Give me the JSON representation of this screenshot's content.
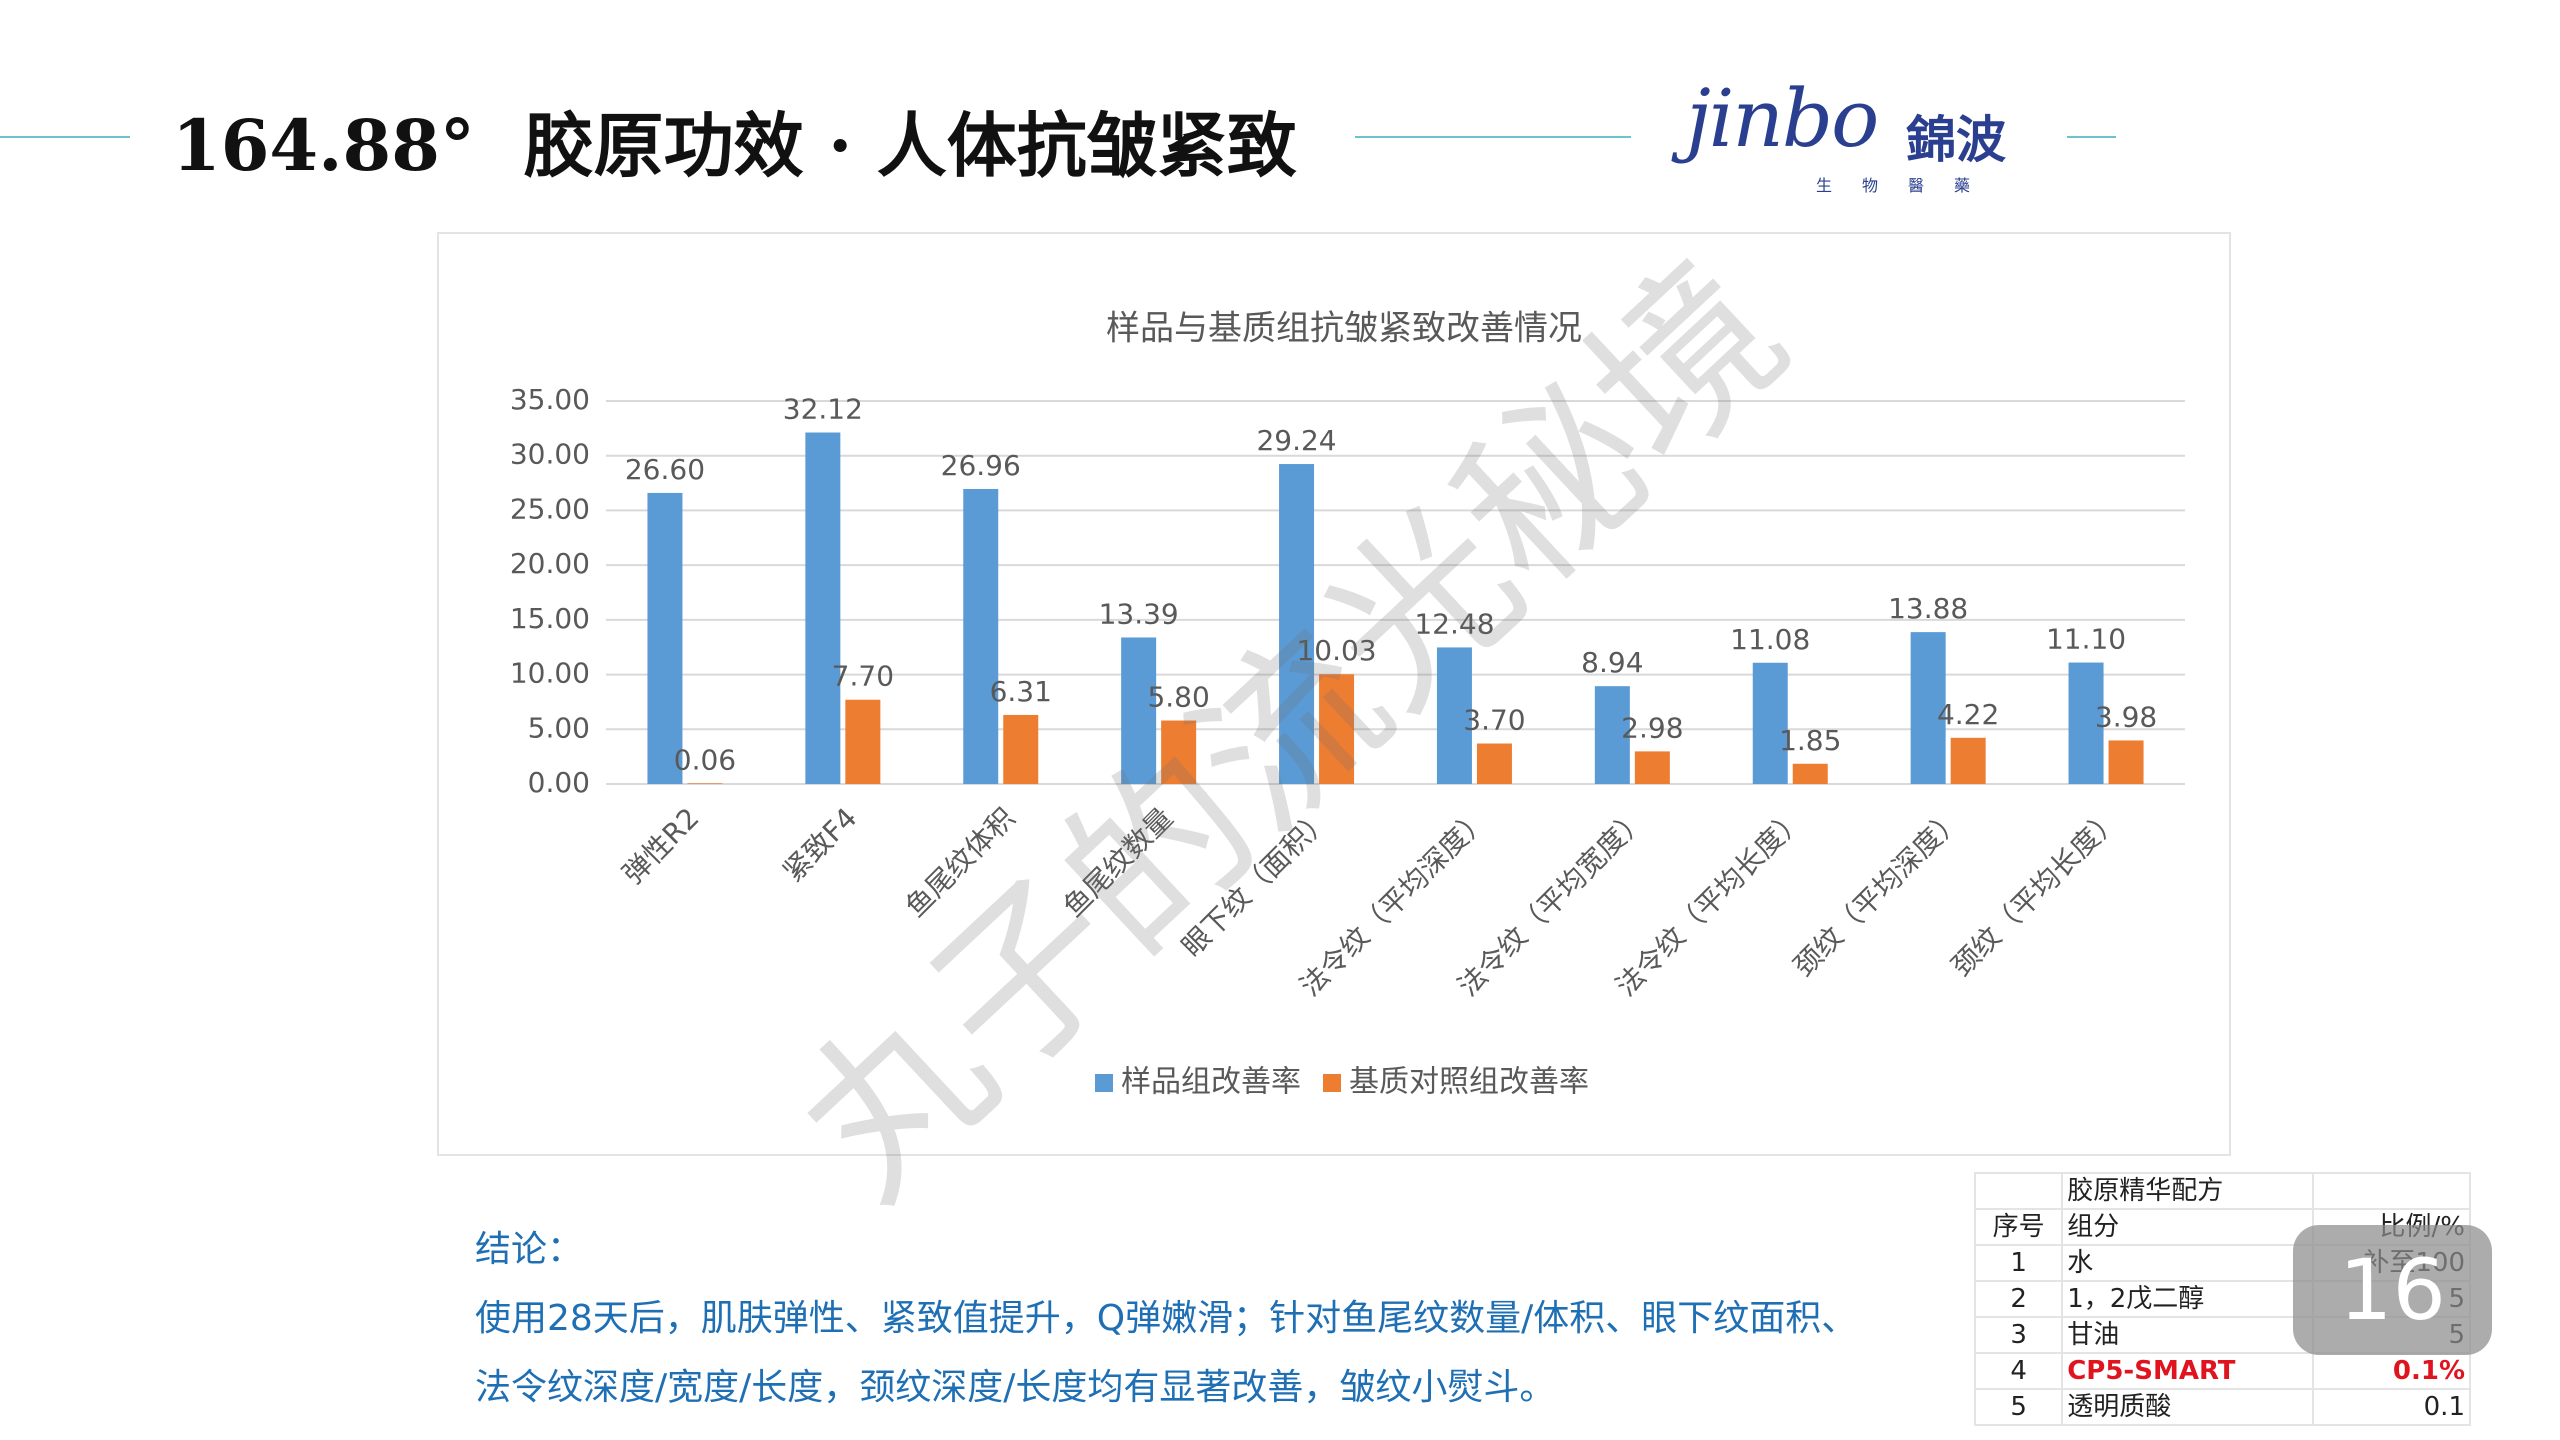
{
  "header": {
    "title": "164.88°  胶原功效 · 人体抗皱紧致"
  },
  "logo": {
    "brand": "jinbo",
    "name": "錦波",
    "subtitle": "生物醫藥"
  },
  "chart_data": {
    "type": "bar",
    "title": "样品与基质组抗皱紧致改善情况",
    "categories": [
      "弹性R2",
      "紧致F4",
      "鱼尾纹体积",
      "鱼尾纹数量",
      "眼下纹（面积）",
      "法令纹（平均深度）",
      "法令纹（平均宽度）",
      "法令纹（平均长度）",
      "颈纹（平均深度）",
      "颈纹（平均长度）"
    ],
    "series": [
      {
        "name": "样品组改善率",
        "color": "#5b9bd5",
        "values": [
          26.6,
          32.12,
          26.96,
          13.39,
          29.24,
          12.48,
          8.94,
          11.08,
          13.88,
          11.1
        ],
        "value_labels": [
          "26.60",
          "32.12",
          "26.96",
          "13.39",
          "29.24",
          "12.48",
          "8.94",
          "11.08",
          "13.88",
          "11.10"
        ]
      },
      {
        "name": "基质对照组改善率",
        "color": "#ed7d31",
        "values": [
          0.06,
          7.7,
          6.31,
          5.8,
          10.03,
          3.7,
          2.98,
          1.85,
          4.22,
          3.98
        ],
        "value_labels": [
          "0.06",
          "7.70",
          "6.31",
          "5.80",
          "10.03",
          "3.70",
          "2.98",
          "1.85",
          "4.22",
          "3.98"
        ]
      }
    ],
    "ylim": [
      0,
      35
    ],
    "yticks": [
      {
        "value": 0,
        "label": "0.00"
      },
      {
        "value": 5,
        "label": "5.00"
      },
      {
        "value": 10,
        "label": "10.00"
      },
      {
        "value": 15,
        "label": "15.00"
      },
      {
        "value": 20,
        "label": "20.00"
      },
      {
        "value": 25,
        "label": "25.00"
      },
      {
        "value": 30,
        "label": "30.00"
      },
      {
        "value": 35,
        "label": "35.00"
      }
    ],
    "grid": true,
    "legend": "bottom"
  },
  "conclusion": {
    "heading": "结论：",
    "lines": [
      "使用28天后，肌肤弹性、紧致值提升，Q弹嫩滑；针对鱼尾纹数量/体积、眼下纹面积、",
      "法令纹深度/宽度/长度，颈纹深度/长度均有显著改善，皱纹小熨斗。"
    ]
  },
  "table": {
    "title": "胶原精华配方",
    "columns": [
      "序号",
      "组分",
      "比例/%"
    ],
    "rows": [
      [
        "1",
        "水",
        "补至100"
      ],
      [
        "2",
        "1，2戊二醇",
        "5"
      ],
      [
        "3",
        "甘油",
        "5"
      ],
      [
        "4",
        "CP5-SMART",
        "0.1%"
      ],
      [
        "5",
        "透明质酸",
        "0.1"
      ]
    ]
  },
  "page_number": "16",
  "watermark": "丸子的流光秘境"
}
